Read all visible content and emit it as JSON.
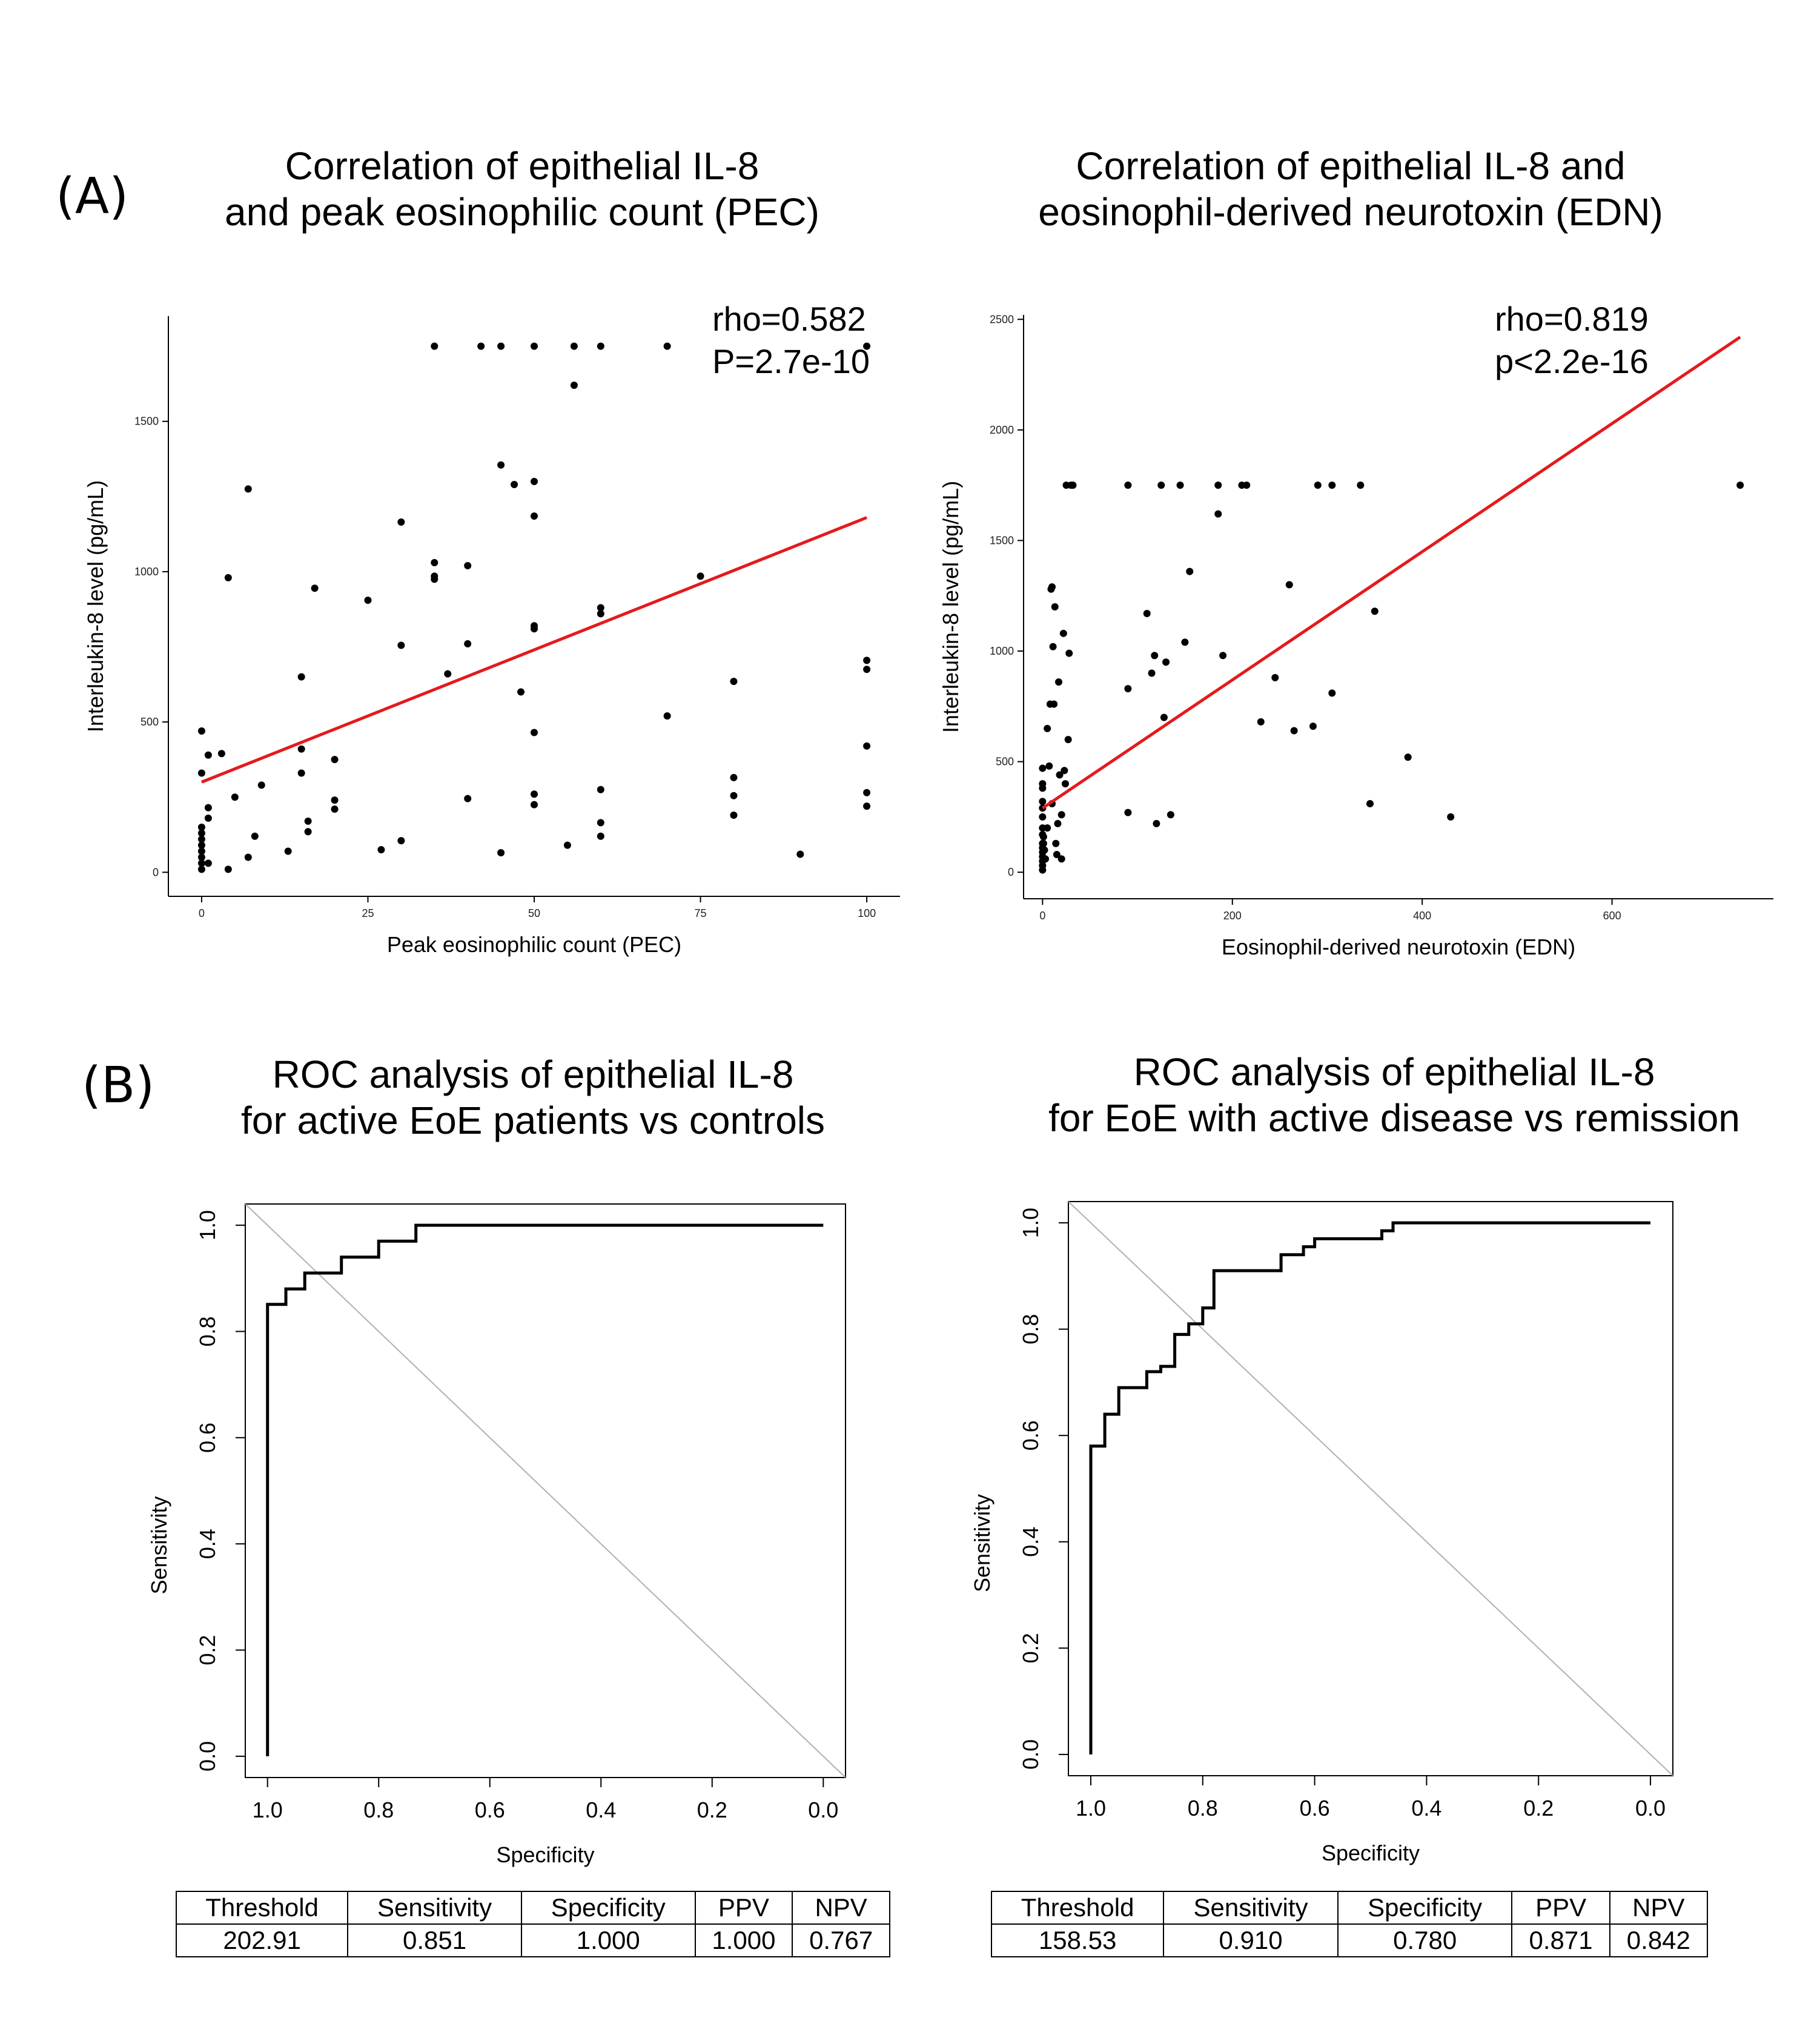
{
  "panel_labels": {
    "A": "(A)",
    "B": "(B)"
  },
  "chart_data": [
    {
      "type": "scatter",
      "title": [
        "Correlation of epithelial IL-8",
        "and peak eosinophilic count (PEC)"
      ],
      "xlabel": "Peak eosinophilic count (PEC)",
      "ylabel": "Interleukin-8 level (pg/mL)",
      "xlim": [
        -5,
        105
      ],
      "ylim": [
        -80,
        1850
      ],
      "xticks": [
        0,
        25,
        50,
        75,
        100
      ],
      "yticks": [
        0,
        500,
        1000,
        1500
      ],
      "annotations": [
        "rho=0.582",
        "P=2.7e-10"
      ],
      "fit_line": {
        "color": "#e41a1c",
        "x": [
          0,
          100
        ],
        "y": [
          300,
          1180
        ]
      },
      "points": [
        [
          0,
          470
        ],
        [
          0,
          330
        ],
        [
          0,
          150
        ],
        [
          0,
          130
        ],
        [
          0,
          110
        ],
        [
          0,
          90
        ],
        [
          0,
          70
        ],
        [
          0,
          50
        ],
        [
          0,
          30
        ],
        [
          0,
          10
        ],
        [
          1,
          390
        ],
        [
          1,
          215
        ],
        [
          1,
          180
        ],
        [
          1,
          30
        ],
        [
          3,
          395
        ],
        [
          4,
          980
        ],
        [
          4,
          10
        ],
        [
          5,
          250
        ],
        [
          7,
          1275
        ],
        [
          7,
          50
        ],
        [
          8,
          120
        ],
        [
          9,
          290
        ],
        [
          13,
          70
        ],
        [
          15,
          650
        ],
        [
          15,
          410
        ],
        [
          15,
          330
        ],
        [
          16,
          170
        ],
        [
          16,
          135
        ],
        [
          17,
          945
        ],
        [
          20,
          375
        ],
        [
          20,
          240
        ],
        [
          20,
          210
        ],
        [
          25,
          905
        ],
        [
          27,
          75
        ],
        [
          30,
          1165
        ],
        [
          30,
          755
        ],
        [
          30,
          105
        ],
        [
          35,
          1750
        ],
        [
          35,
          1030
        ],
        [
          35,
          985
        ],
        [
          35,
          975
        ],
        [
          37,
          660
        ],
        [
          40,
          1020
        ],
        [
          40,
          760
        ],
        [
          40,
          245
        ],
        [
          42,
          1750
        ],
        [
          45,
          1750
        ],
        [
          45,
          1355
        ],
        [
          45,
          65
        ],
        [
          47,
          1290
        ],
        [
          48,
          600
        ],
        [
          50,
          1750
        ],
        [
          50,
          1300
        ],
        [
          50,
          1185
        ],
        [
          50,
          820
        ],
        [
          50,
          810
        ],
        [
          50,
          465
        ],
        [
          50,
          260
        ],
        [
          50,
          225
        ],
        [
          55,
          90
        ],
        [
          56,
          1750
        ],
        [
          56,
          1620
        ],
        [
          60,
          1750
        ],
        [
          60,
          880
        ],
        [
          60,
          860
        ],
        [
          60,
          275
        ],
        [
          60,
          165
        ],
        [
          60,
          120
        ],
        [
          70,
          1750
        ],
        [
          70,
          520
        ],
        [
          75,
          985
        ],
        [
          80,
          635
        ],
        [
          80,
          315
        ],
        [
          80,
          255
        ],
        [
          80,
          190
        ],
        [
          90,
          60
        ],
        [
          100,
          1750
        ],
        [
          100,
          705
        ],
        [
          100,
          675
        ],
        [
          100,
          420
        ],
        [
          100,
          265
        ],
        [
          100,
          220
        ]
      ]
    },
    {
      "type": "scatter",
      "title": [
        "Correlation of epithelial IL-8 and",
        "eosinophil-derived neurotoxin (EDN)"
      ],
      "xlabel": "Eosinophil-derived neurotoxin (EDN)",
      "ylabel": "Interleukin-8 level (pg/mL)",
      "xlim": [
        -20,
        770
      ],
      "ylim": [
        -120,
        2520
      ],
      "xticks": [
        0,
        200,
        400,
        600
      ],
      "yticks": [
        0,
        500,
        1000,
        1500,
        2000,
        2500
      ],
      "annotations": [
        "rho=0.819",
        "p<2.2e-16"
      ],
      "fit_line": {
        "color": "#e41a1c",
        "x": [
          0,
          735
        ],
        "y": [
          290,
          2420
        ]
      },
      "points": [
        [
          0,
          470
        ],
        [
          0,
          400
        ],
        [
          0,
          380
        ],
        [
          0,
          320
        ],
        [
          0,
          290
        ],
        [
          0,
          250
        ],
        [
          0,
          200
        ],
        [
          0,
          170
        ],
        [
          0,
          130
        ],
        [
          0,
          110
        ],
        [
          0,
          90
        ],
        [
          0,
          70
        ],
        [
          0,
          50
        ],
        [
          0,
          30
        ],
        [
          0,
          10
        ],
        [
          1,
          160
        ],
        [
          1,
          130
        ],
        [
          2,
          100
        ],
        [
          3,
          60
        ],
        [
          5,
          650
        ],
        [
          5,
          200
        ],
        [
          7,
          480
        ],
        [
          8,
          760
        ],
        [
          9,
          1280
        ],
        [
          10,
          1290
        ],
        [
          10,
          310
        ],
        [
          11,
          1020
        ],
        [
          12,
          760
        ],
        [
          13,
          1200
        ],
        [
          14,
          130
        ],
        [
          15,
          80
        ],
        [
          16,
          220
        ],
        [
          17,
          860
        ],
        [
          18,
          440
        ],
        [
          20,
          260
        ],
        [
          20,
          60
        ],
        [
          22,
          1080
        ],
        [
          23,
          460
        ],
        [
          24,
          400
        ],
        [
          25,
          1750
        ],
        [
          27,
          600
        ],
        [
          28,
          990
        ],
        [
          30,
          1750
        ],
        [
          32,
          1750
        ],
        [
          90,
          1750
        ],
        [
          90,
          830
        ],
        [
          90,
          270
        ],
        [
          110,
          1170
        ],
        [
          115,
          900
        ],
        [
          118,
          980
        ],
        [
          120,
          220
        ],
        [
          125,
          1750
        ],
        [
          128,
          700
        ],
        [
          130,
          950
        ],
        [
          135,
          260
        ],
        [
          145,
          1750
        ],
        [
          150,
          1040
        ],
        [
          155,
          1360
        ],
        [
          185,
          1750
        ],
        [
          185,
          1620
        ],
        [
          190,
          980
        ],
        [
          210,
          1750
        ],
        [
          215,
          1750
        ],
        [
          230,
          680
        ],
        [
          245,
          880
        ],
        [
          260,
          1300
        ],
        [
          265,
          640
        ],
        [
          285,
          660
        ],
        [
          290,
          1750
        ],
        [
          305,
          1750
        ],
        [
          305,
          810
        ],
        [
          335,
          1750
        ],
        [
          345,
          310
        ],
        [
          350,
          1180
        ],
        [
          385,
          520
        ],
        [
          430,
          250
        ],
        [
          735,
          1750
        ]
      ]
    },
    {
      "type": "line",
      "title": [
        "ROC analysis of epithelial IL-8",
        "for active EoE patients vs controls"
      ],
      "xlabel": "Specificity",
      "ylabel": "Sensitivity",
      "xlim": [
        1.04,
        -0.04
      ],
      "ylim": [
        -0.04,
        1.04
      ],
      "xticks": [
        1.0,
        0.8,
        0.6,
        0.4,
        0.2,
        0.0
      ],
      "yticks": [
        0.0,
        0.2,
        0.4,
        0.6,
        0.8,
        1.0
      ],
      "xtick_labels": [
        "1.0",
        "0.8",
        "0.6",
        "0.4",
        "0.2",
        "0.0"
      ],
      "ytick_labels": [
        "0.0",
        "0.2",
        "0.4",
        "0.6",
        "0.8",
        "1.0"
      ],
      "x": [
        1.0,
        1.0,
        0.967,
        0.967,
        0.933,
        0.933,
        0.867,
        0.867,
        0.8,
        0.8,
        0.733,
        0.733,
        0.0
      ],
      "y": [
        0.0,
        0.851,
        0.851,
        0.88,
        0.88,
        0.91,
        0.91,
        0.94,
        0.94,
        0.97,
        0.97,
        1.0,
        1.0
      ],
      "metrics": {
        "headers": [
          "Threshold",
          "Sensitivity",
          "Specificity",
          "PPV",
          "NPV"
        ],
        "values": [
          "202.91",
          "0.851",
          "1.000",
          "1.000",
          "0.767"
        ]
      }
    },
    {
      "type": "line",
      "title": [
        "ROC analysis of epithelial IL-8",
        "for EoE with active disease vs remission"
      ],
      "xlabel": "Specificity",
      "ylabel": "Sensitivity",
      "xlim": [
        1.04,
        -0.04
      ],
      "ylim": [
        -0.04,
        1.04
      ],
      "xticks": [
        1.0,
        0.8,
        0.6,
        0.4,
        0.2,
        0.0
      ],
      "yticks": [
        0.0,
        0.2,
        0.4,
        0.6,
        0.8,
        1.0
      ],
      "xtick_labels": [
        "1.0",
        "0.8",
        "0.6",
        "0.4",
        "0.2",
        "0.0"
      ],
      "ytick_labels": [
        "0.0",
        "0.2",
        "0.4",
        "0.6",
        "0.8",
        "1.0"
      ],
      "x": [
        1.0,
        1.0,
        0.975,
        0.975,
        0.95,
        0.95,
        0.9,
        0.9,
        0.875,
        0.875,
        0.85,
        0.85,
        0.825,
        0.825,
        0.8,
        0.8,
        0.78,
        0.78,
        0.66,
        0.66,
        0.62,
        0.62,
        0.6,
        0.6,
        0.48,
        0.48,
        0.46,
        0.46,
        0.0
      ],
      "y": [
        0.0,
        0.58,
        0.58,
        0.64,
        0.64,
        0.69,
        0.69,
        0.72,
        0.72,
        0.73,
        0.73,
        0.79,
        0.79,
        0.81,
        0.81,
        0.84,
        0.84,
        0.91,
        0.91,
        0.94,
        0.94,
        0.955,
        0.955,
        0.97,
        0.97,
        0.985,
        0.985,
        1.0,
        1.0
      ],
      "metrics": {
        "headers": [
          "Threshold",
          "Sensitivity",
          "Specificity",
          "PPV",
          "NPV"
        ],
        "values": [
          "158.53",
          "0.910",
          "0.780",
          "0.871",
          "0.842"
        ]
      }
    }
  ]
}
